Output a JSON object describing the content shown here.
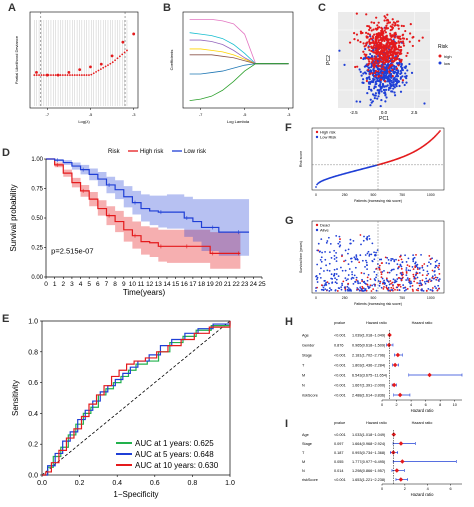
{
  "letters": {
    "a": "A",
    "b": "B",
    "c": "C",
    "d": "D",
    "e": "E",
    "f": "F",
    "g": "G",
    "h": "H",
    "i": "I"
  },
  "colors": {
    "red": "#e41a1c",
    "blue": "#1f3fd6",
    "green": "#22b14c",
    "black": "#000000"
  },
  "chart_data": [
    {
      "id": "A",
      "type": "scatter",
      "xlabel": "Log(λ)",
      "ylabel": "Partial Likelihood Deviance",
      "x": [
        -7.5,
        -7.0,
        -6.5,
        -6.0,
        -5.5,
        -5.0,
        -4.5,
        -4.0,
        -3.5,
        -3.0
      ],
      "y": [
        11.98,
        11.97,
        11.97,
        11.98,
        11.99,
        12.0,
        12.01,
        12.04,
        12.09,
        12.12
      ],
      "xticks": [
        "-7",
        "-5",
        "-3"
      ]
    },
    {
      "id": "B",
      "type": "line",
      "xlabel": "Log Lambda",
      "ylabel": "Coefficients",
      "xticks": [
        "-7",
        "-5",
        "-3"
      ],
      "series": [
        {
          "color": "#e377c2",
          "values": [
            0.3,
            0.3,
            0.3,
            0.29,
            0.27,
            0.2,
            0.0
          ]
        },
        {
          "color": "#17becf",
          "values": [
            0.21,
            0.2,
            0.19,
            0.17,
            0.13,
            0.07,
            0.0
          ]
        },
        {
          "color": "#9467bd",
          "values": [
            0.16,
            0.16,
            0.15,
            0.13,
            0.09,
            0.04,
            0.0
          ]
        },
        {
          "color": "#ffd400",
          "values": [
            0.1,
            0.1,
            0.09,
            0.08,
            0.06,
            0.03,
            0.0
          ]
        },
        {
          "color": "#8c564b",
          "values": [
            0.06,
            0.06,
            0.06,
            0.05,
            0.04,
            0.02,
            0.0
          ]
        },
        {
          "color": "#1f77b4",
          "values": [
            -0.07,
            -0.07,
            -0.06,
            -0.05,
            -0.03,
            -0.01,
            0.0
          ]
        },
        {
          "color": "#2ca02c",
          "values": [
            -0.25,
            -0.24,
            -0.22,
            -0.18,
            -0.12,
            -0.05,
            0.0
          ]
        }
      ],
      "x": [
        -7.5,
        -7.0,
        -6.5,
        -6.0,
        -5.5,
        -5.0,
        -4.5
      ]
    },
    {
      "id": "C",
      "type": "scatter",
      "xlabel": "PC1",
      "ylabel": "PC2",
      "xticks": [
        "-2.5",
        "0.0",
        "2.5"
      ],
      "legend": {
        "title": "Risk",
        "items": [
          "high",
          "low"
        ]
      }
    },
    {
      "id": "D",
      "type": "line",
      "xlabel": "Time(years)",
      "ylabel": "Survival probability",
      "legend": {
        "title": "Risk",
        "items": [
          "High risk",
          "Low risk"
        ]
      },
      "annotation": "p=2.515e-07",
      "xticks": [
        "0",
        "1",
        "2",
        "3",
        "4",
        "5",
        "6",
        "7",
        "8",
        "9",
        "10",
        "11",
        "12",
        "13",
        "14",
        "15",
        "16",
        "17",
        "18",
        "19",
        "20",
        "21",
        "22",
        "23",
        "24",
        "25"
      ],
      "yticks": [
        "0.00",
        "0.25",
        "0.50",
        "0.75",
        "1.00"
      ],
      "series": [
        {
          "name": "High risk",
          "color": "#e41a1c",
          "x": [
            0,
            1,
            2,
            3,
            4,
            5,
            6,
            7,
            8,
            9,
            10,
            11,
            12,
            13,
            14,
            15,
            16,
            17,
            18,
            19,
            20,
            21,
            22
          ],
          "y": [
            1.0,
            0.95,
            0.88,
            0.8,
            0.73,
            0.66,
            0.58,
            0.52,
            0.47,
            0.4,
            0.35,
            0.3,
            0.29,
            0.26,
            0.26,
            0.26,
            0.26,
            0.26,
            0.26,
            0.2,
            0.2,
            0.2,
            0.2
          ],
          "lo": [
            1.0,
            0.93,
            0.85,
            0.76,
            0.68,
            0.6,
            0.52,
            0.44,
            0.38,
            0.3,
            0.24,
            0.19,
            0.17,
            0.13,
            0.12,
            0.12,
            0.12,
            0.12,
            0.12,
            0.07,
            0.07,
            0.07,
            0.07
          ],
          "hi": [
            1.0,
            0.97,
            0.91,
            0.84,
            0.78,
            0.72,
            0.65,
            0.6,
            0.56,
            0.51,
            0.47,
            0.43,
            0.42,
            0.4,
            0.4,
            0.4,
            0.4,
            0.4,
            0.4,
            0.38,
            0.38,
            0.38,
            0.38
          ]
        },
        {
          "name": "Low risk",
          "color": "#1f3fd6",
          "x": [
            0,
            1,
            2,
            3,
            4,
            5,
            6,
            7,
            8,
            9,
            10,
            11,
            12,
            13,
            14,
            15,
            16,
            17,
            18,
            19,
            20,
            21,
            22,
            23
          ],
          "y": [
            1.0,
            0.99,
            0.97,
            0.94,
            0.91,
            0.87,
            0.83,
            0.78,
            0.74,
            0.68,
            0.63,
            0.58,
            0.56,
            0.55,
            0.55,
            0.55,
            0.5,
            0.47,
            0.42,
            0.42,
            0.38,
            0.38,
            0.38,
            0.38
          ],
          "lo": [
            1.0,
            0.98,
            0.95,
            0.91,
            0.87,
            0.82,
            0.77,
            0.71,
            0.66,
            0.59,
            0.53,
            0.47,
            0.44,
            0.42,
            0.41,
            0.41,
            0.34,
            0.3,
            0.22,
            0.22,
            0.18,
            0.18,
            0.18,
            0.18
          ],
          "hi": [
            1.0,
            1.0,
            0.99,
            0.97,
            0.95,
            0.92,
            0.89,
            0.85,
            0.82,
            0.77,
            0.73,
            0.7,
            0.69,
            0.69,
            0.7,
            0.7,
            0.68,
            0.66,
            0.66,
            0.66,
            0.66,
            0.66,
            0.66,
            0.66
          ]
        }
      ]
    },
    {
      "id": "E",
      "type": "line",
      "xlabel": "1−Specificity",
      "ylabel": "Sensitivity",
      "xticks": [
        "0.0",
        "0.2",
        "0.4",
        "0.6",
        "0.8",
        "1.0"
      ],
      "yticks": [
        "0.0",
        "0.2",
        "0.4",
        "0.6",
        "0.8",
        "1.0"
      ],
      "series": [
        {
          "name": "AUC at 1 years: 0.625",
          "color": "#22b14c",
          "x": [
            0,
            0.03,
            0.06,
            0.1,
            0.14,
            0.18,
            0.22,
            0.26,
            0.3,
            0.34,
            0.38,
            0.42,
            0.46,
            0.5,
            0.56,
            0.62,
            0.68,
            0.75,
            0.82,
            0.9,
            1.0
          ],
          "y": [
            0,
            0.05,
            0.12,
            0.18,
            0.26,
            0.33,
            0.4,
            0.44,
            0.52,
            0.56,
            0.6,
            0.64,
            0.68,
            0.72,
            0.74,
            0.8,
            0.86,
            0.9,
            0.94,
            0.97,
            1.0
          ]
        },
        {
          "name": "AUC at 5 years: 0.648",
          "color": "#1f3fd6",
          "x": [
            0,
            0.03,
            0.07,
            0.11,
            0.15,
            0.19,
            0.23,
            0.27,
            0.31,
            0.35,
            0.39,
            0.43,
            0.47,
            0.51,
            0.57,
            0.63,
            0.69,
            0.76,
            0.83,
            0.91,
            1.0
          ],
          "y": [
            0,
            0.06,
            0.14,
            0.22,
            0.28,
            0.36,
            0.42,
            0.48,
            0.54,
            0.58,
            0.62,
            0.66,
            0.7,
            0.74,
            0.78,
            0.84,
            0.88,
            0.92,
            0.95,
            0.98,
            1.0
          ]
        },
        {
          "name": "AUC at 10 years: 0.630",
          "color": "#e41a1c",
          "x": [
            0,
            0.02,
            0.05,
            0.09,
            0.13,
            0.17,
            0.21,
            0.25,
            0.29,
            0.33,
            0.37,
            0.41,
            0.45,
            0.49,
            0.55,
            0.61,
            0.67,
            0.74,
            0.81,
            0.89,
            1.0
          ],
          "y": [
            0,
            0.02,
            0.08,
            0.16,
            0.24,
            0.3,
            0.38,
            0.46,
            0.52,
            0.58,
            0.64,
            0.68,
            0.72,
            0.74,
            0.76,
            0.8,
            0.84,
            0.88,
            0.92,
            0.96,
            1.0
          ]
        }
      ]
    },
    {
      "id": "F",
      "type": "scatter",
      "xlabel": "Patients (increasing risk socre)",
      "ylabel": "Risk score",
      "legend": {
        "items": [
          "High risk",
          "Low Risk"
        ]
      },
      "xticks": [
        "0",
        "250",
        "500",
        "750",
        "1000"
      ]
    },
    {
      "id": "G",
      "type": "scatter",
      "xlabel": "Patients (increasing risk socre)",
      "ylabel": "Survival time (years)",
      "legend": {
        "items": [
          "Dead",
          "Alive"
        ]
      },
      "xticks": [
        "0",
        "250",
        "500",
        "750",
        "1000"
      ]
    },
    {
      "id": "H",
      "type": "scatter",
      "title": "Hazard ratio",
      "xlabel": "Hazard ratio",
      "headers": [
        "pvalue",
        "Hazard ratio"
      ],
      "xticks": [
        "0",
        "2",
        "4",
        "6",
        "8",
        "10"
      ],
      "rows": [
        {
          "label": "Age",
          "p": "<0.001",
          "hr_text": "1.039(1.018~1.049)",
          "hr": 1.04,
          "lo": 1.02,
          "hi": 1.05
        },
        {
          "label": "Gender",
          "p": "0.876",
          "hr_text": "0.965(0.618~1.509)",
          "hr": 0.97,
          "lo": 0.62,
          "hi": 1.51
        },
        {
          "label": "Stage",
          "p": "<0.001",
          "hr_text": "2.181(1.702~2.796)",
          "hr": 2.18,
          "lo": 1.7,
          "hi": 2.8
        },
        {
          "label": "T",
          "p": "<0.001",
          "hr_text": "1.803(1.436~2.284)",
          "hr": 1.8,
          "lo": 1.44,
          "hi": 2.28
        },
        {
          "label": "M",
          "p": "<0.001",
          "hr_text": "6.543(3.675~11.654)",
          "hr": 6.54,
          "lo": 3.68,
          "hi": 11.65
        },
        {
          "label": "N",
          "p": "<0.001",
          "hr_text": "1.667(1.391~2.000)",
          "hr": 1.67,
          "lo": 1.39,
          "hi": 2.0
        },
        {
          "label": "riskScore",
          "p": "<0.001",
          "hr_text": "2.488(1.614~3.836)",
          "hr": 2.49,
          "lo": 1.61,
          "hi": 3.84
        }
      ]
    },
    {
      "id": "I",
      "type": "scatter",
      "title": "Hazard ratio",
      "xlabel": "Hazard ratio",
      "headers": [
        "pvalue",
        "Hazard ratio"
      ],
      "xticks": [
        "0",
        "2",
        "4",
        "6"
      ],
      "rows": [
        {
          "label": "Age",
          "p": "<0.001",
          "hr_text": "1.033(1.018~1.049)",
          "hr": 1.03,
          "lo": 1.02,
          "hi": 1.05
        },
        {
          "label": "Stage",
          "p": "0.097",
          "hr_text": "1.664(0.968~2.924)",
          "hr": 1.66,
          "lo": 0.97,
          "hi": 2.92
        },
        {
          "label": "T",
          "p": "0.187",
          "hr_text": "0.993(0.734~1.368)",
          "hr": 0.99,
          "lo": 0.73,
          "hi": 1.37
        },
        {
          "label": "M",
          "p": "0.055",
          "hr_text": "1.777(0.977~6.495)",
          "hr": 1.78,
          "lo": 0.98,
          "hi": 6.5
        },
        {
          "label": "N",
          "p": "0.014",
          "hr_text": "1.298(0.866~1.957)",
          "hr": 1.3,
          "lo": 0.87,
          "hi": 1.96
        },
        {
          "label": "riskScore",
          "p": "<0.001",
          "hr_text": "1.653(1.221~2.238)",
          "hr": 1.65,
          "lo": 1.22,
          "hi": 2.24
        }
      ]
    }
  ]
}
